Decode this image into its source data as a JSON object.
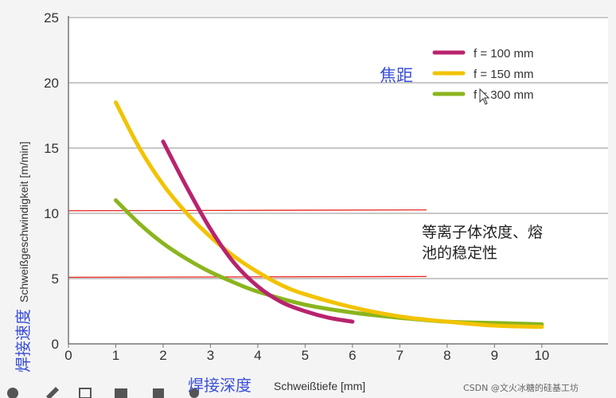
{
  "chart_data": {
    "type": "line",
    "xlabel_cn": "焊接深度",
    "xlabel": "Schweißtiefe [mm]",
    "ylabel_cn": "焊接速度",
    "ylabel": "Schweißgeschwindigkeit [m/min]",
    "xlim": [
      0,
      11
    ],
    "ylim": [
      0,
      25
    ],
    "x_ticks": [
      "0",
      "1",
      "2",
      "3",
      "4",
      "5",
      "6",
      "7",
      "8",
      "9",
      "10"
    ],
    "y_ticks": [
      "0",
      "5",
      "10",
      "15",
      "20",
      "25"
    ],
    "grid": "horizontal",
    "legend_title_cn": "焦距",
    "legend_position": "top-right",
    "series": [
      {
        "name": "f = 100 mm",
        "color": "#b8236e",
        "x": [
          2.0,
          2.5,
          3.0,
          3.5,
          4.0,
          4.5,
          5.0,
          5.5,
          6.0
        ],
        "y": [
          15.5,
          12.0,
          8.8,
          6.2,
          4.4,
          3.2,
          2.5,
          2.0,
          1.7
        ]
      },
      {
        "name": "f = 150 mm",
        "color": "#f2c300",
        "x": [
          1.0,
          1.5,
          2.0,
          2.5,
          3.0,
          3.5,
          4.0,
          4.5,
          5.0,
          6.0,
          7.0,
          8.0,
          9.0,
          10.0
        ],
        "y": [
          18.5,
          15.0,
          12.2,
          10.0,
          8.2,
          6.7,
          5.5,
          4.5,
          3.8,
          2.8,
          2.1,
          1.7,
          1.4,
          1.3
        ]
      },
      {
        "name": "f = 300 mm",
        "color": "#8ab51e",
        "x": [
          1.0,
          1.5,
          2.0,
          2.5,
          3.0,
          3.5,
          4.0,
          5.0,
          6.0,
          7.0,
          8.0,
          9.0,
          10.0
        ],
        "y": [
          11.0,
          9.2,
          7.7,
          6.5,
          5.5,
          4.7,
          4.0,
          3.0,
          2.4,
          2.0,
          1.7,
          1.6,
          1.5
        ]
      }
    ],
    "reference_lines": [
      {
        "y": 10.2,
        "color": "#e8241e"
      },
      {
        "y": 5.1,
        "color": "#e8241e"
      }
    ],
    "annotation_cn": [
      "等离子体浓度、熔",
      "池的稳定性"
    ]
  },
  "watermark": "CSDN @文火冰糖的硅基工坊"
}
